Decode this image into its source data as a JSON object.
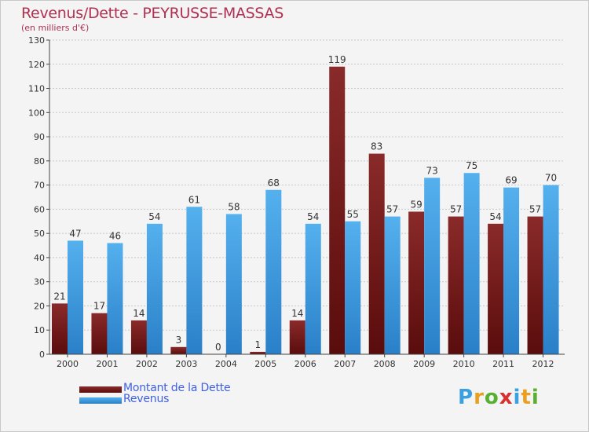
{
  "chart_data": {
    "type": "bar",
    "title": "Revenus/Dette - PEYRUSSE-MASSAS",
    "subtitle": "(en milliers d'€)",
    "categories": [
      "2000",
      "2001",
      "2002",
      "2003",
      "2004",
      "2005",
      "2006",
      "2007",
      "2008",
      "2009",
      "2010",
      "2011",
      "2012"
    ],
    "series": [
      {
        "name": "Montant de la Dette",
        "color": "#7a1a1a",
        "values": [
          21,
          17,
          14,
          3,
          0,
          1,
          14,
          119,
          83,
          59,
          57,
          54,
          57
        ]
      },
      {
        "name": "Revenus",
        "color": "#3a96da",
        "values": [
          47,
          46,
          54,
          61,
          58,
          68,
          54,
          55,
          57,
          73,
          75,
          69,
          70
        ]
      }
    ],
    "ylim": [
      0,
      130
    ],
    "ytick_step": 10,
    "grid": true,
    "legend_position": "bottom-left",
    "xlabel": "",
    "ylabel": ""
  },
  "legend": {
    "dette_label": "Montant de la Dette",
    "revenus_label": "Revenus"
  },
  "logo": {
    "letters": [
      "P",
      "r",
      "o",
      "x",
      "i",
      "t",
      "i"
    ],
    "colors": [
      "#3aa0e0",
      "#e8a020",
      "#58b030",
      "#d83030",
      "#3aa0e0",
      "#e8a020",
      "#58b030"
    ]
  }
}
